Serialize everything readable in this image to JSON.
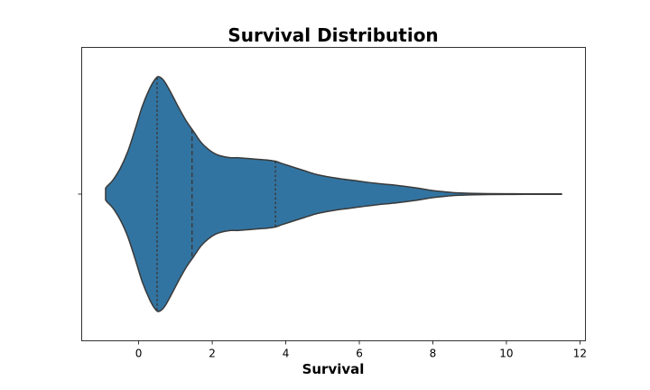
{
  "chart_data": {
    "type": "violin",
    "title": "Survival Distribution",
    "xlabel": "Survival",
    "ylabel": "",
    "xlim": [
      -1.55,
      12.15
    ],
    "xticks": [
      0,
      2,
      4,
      6,
      8,
      10,
      12
    ],
    "grid": false,
    "legend": "none",
    "orientation": "horizontal",
    "inner": "quartile",
    "fill_color": "#3274a1",
    "edge_color": "#3a3a3a",
    "quartiles": [
      0.5,
      1.45,
      3.72
    ],
    "density_profile": {
      "x": [
        -0.9,
        -0.85,
        -0.7,
        -0.5,
        -0.3,
        -0.1,
        0.1,
        0.3,
        0.45,
        0.55,
        0.7,
        0.9,
        1.1,
        1.3,
        1.5,
        1.7,
        1.9,
        2.1,
        2.3,
        2.5,
        2.7,
        2.9,
        3.1,
        3.3,
        3.5,
        3.72,
        3.9,
        4.2,
        4.5,
        4.8,
        5.1,
        5.5,
        6.0,
        6.5,
        7.0,
        7.5,
        8.0,
        8.3,
        8.6,
        9.0,
        9.5,
        10.0,
        10.5,
        11.0,
        11.5
      ],
      "half_width": [
        0.05,
        0.07,
        0.12,
        0.22,
        0.36,
        0.55,
        0.75,
        0.9,
        0.98,
        1.0,
        0.96,
        0.85,
        0.73,
        0.62,
        0.53,
        0.44,
        0.38,
        0.34,
        0.32,
        0.31,
        0.31,
        0.305,
        0.3,
        0.295,
        0.29,
        0.28,
        0.26,
        0.23,
        0.2,
        0.17,
        0.15,
        0.13,
        0.11,
        0.09,
        0.075,
        0.055,
        0.03,
        0.02,
        0.012,
        0.007,
        0.004,
        0.003,
        0.002,
        0.002,
        0.002
      ]
    }
  }
}
